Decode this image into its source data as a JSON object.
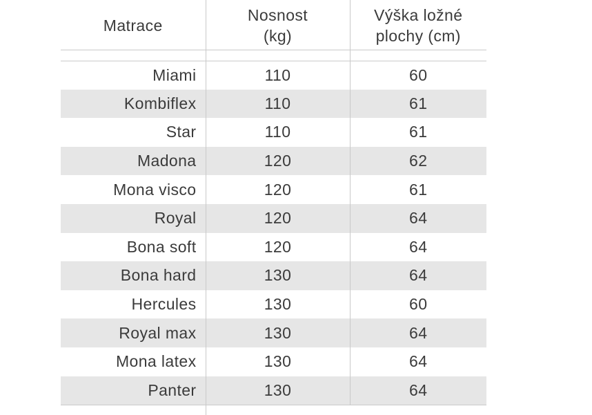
{
  "chart_data": {
    "type": "table",
    "columns": [
      {
        "line1": "Matrace",
        "line2": "",
        "full_label": "Matrace"
      },
      {
        "line1": "Nosnost",
        "line2": "(kg)",
        "full_label": "Nosnost (kg)"
      },
      {
        "line1": "Výška ložné",
        "line2": "plochy (cm)",
        "full_label": "Výška ložné plochy (cm)"
      }
    ],
    "rows": [
      [
        "Miami",
        "110",
        "60"
      ],
      [
        "Kombiflex",
        "110",
        "61"
      ],
      [
        "Star",
        "110",
        "61"
      ],
      [
        "Madona",
        "120",
        "62"
      ],
      [
        "Mona visco",
        "120",
        "61"
      ],
      [
        "Royal",
        "120",
        "64"
      ],
      [
        "Bona soft",
        "120",
        "64"
      ],
      [
        "Bona hard",
        "130",
        "64"
      ],
      [
        "Hercules",
        "130",
        "60"
      ],
      [
        "Royal max",
        "130",
        "64"
      ],
      [
        "Mona latex",
        "130",
        "64"
      ],
      [
        "Panter",
        "130",
        "64"
      ]
    ],
    "layout_hints": {
      "striping": "alternate rows shaded, starting with white",
      "first_column_alignment": "right",
      "other_columns_alignment": "center",
      "grid": "vertical column dividers + header underline"
    }
  },
  "colors": {
    "stripe": "#e6e6e6",
    "border": "#c9c9c9",
    "text": "#3b3b3b",
    "background": "#ffffff"
  }
}
